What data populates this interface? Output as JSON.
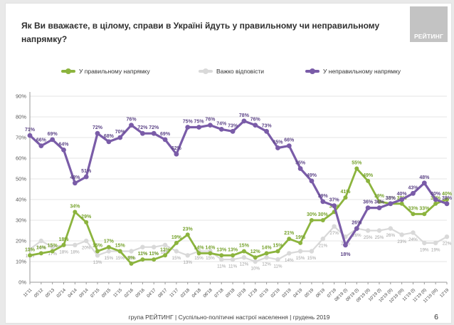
{
  "slide": {
    "title": "Як Ви вважаєте, в цілому, справи в Україні йдуть у правильному чи неправильному напрямку?",
    "logo_text": "РЕЙТИНГ",
    "footer": "група РЕЙТИНГ | Суспільно-політичні настрої населення | грудень 2019",
    "page_number": "6"
  },
  "legend": [
    {
      "label": "У правильному напрямку",
      "color": "#8cb43e"
    },
    {
      "label": "Важко відповісти",
      "color": "#d9d9d9"
    },
    {
      "label": "У неправильному напрямку",
      "color": "#7a5ca8"
    }
  ],
  "chart_data": {
    "type": "line",
    "title": "Як Ви вважаєте, в цілому, справи в Україні йдуть у правильному чи неправильному напрямку?",
    "categories": [
      "11'11",
      "05'12",
      "05'13",
      "02'14",
      "04'14",
      "09'14",
      "07'15",
      "09'15",
      "11'15",
      "02'16",
      "09'16",
      "04'17",
      "08'17",
      "11'17",
      "03'18",
      "04'18",
      "06'18",
      "07'18",
      "09'18",
      "10'18",
      "12'18",
      "01'19",
      "02'19",
      "03'19",
      "04'19",
      "05'19",
      "06'19",
      "07'19",
      "08'19 (I)",
      "09'19 (I)",
      "09'19 (II)",
      "10'19 (I)",
      "10'19 (II)",
      "10'19 (III)",
      "11'19 (I)",
      "11'19 (II)",
      "11'19 (III)",
      "12'19"
    ],
    "series": [
      {
        "name": "Важко відповісти",
        "color": "#d9d9d9",
        "label_color": "#9e9e9e",
        "label_pos": "below",
        "width": 2.2,
        "dot": 3.2,
        "values": [
          16,
          20,
          17,
          18,
          18,
          20,
          13,
          15,
          15,
          15,
          17,
          17,
          18,
          15,
          13,
          15,
          15,
          11,
          11,
          12,
          10,
          12,
          11,
          14,
          15,
          15,
          21,
          27,
          22,
          26,
          25,
          25,
          26,
          23,
          24,
          19,
          19,
          22
        ]
      },
      {
        "name": "У правильному напрямку",
        "color": "#8cb43e",
        "label_color": "#76a22c",
        "label_pos": "above",
        "width": 2.8,
        "dot": 3.0,
        "values": [
          13,
          14,
          15,
          18,
          34,
          29,
          15,
          17,
          15,
          9,
          11,
          11,
          13,
          19,
          23,
          14,
          14,
          13,
          13,
          15,
          12,
          14,
          15,
          21,
          19,
          30,
          30,
          34,
          41,
          55,
          49,
          39,
          38,
          38,
          33,
          33,
          38,
          40
        ]
      },
      {
        "name": "У неправильному напрямку",
        "color": "#7a5ca8",
        "label_color": "#5e4688",
        "label_pos": "above",
        "width": 3.2,
        "dot": 3.4,
        "values": [
          71,
          66,
          69,
          64,
          48,
          51,
          72,
          68,
          70,
          76,
          72,
          72,
          69,
          62,
          75,
          75,
          76,
          74,
          73,
          78,
          76,
          73,
          65,
          66,
          55,
          49,
          39,
          37,
          18,
          26,
          36,
          36,
          38,
          40,
          43,
          48,
          40,
          38
        ]
      }
    ],
    "ylim": [
      0,
      90
    ],
    "ytick_step": 10,
    "ytick_suffix": "%",
    "grid": true,
    "legend_position": "top",
    "xlabel": "",
    "ylabel": ""
  }
}
